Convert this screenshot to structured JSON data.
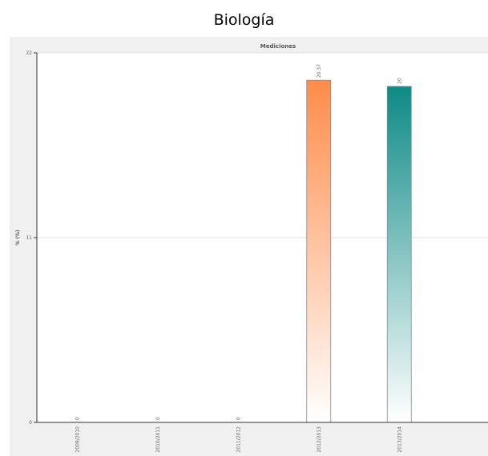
{
  "page": {
    "title": "Biología"
  },
  "chart_data": {
    "type": "bar",
    "title": "Mediciones",
    "xlabel": "",
    "ylabel": "% (%)",
    "categories": [
      "2009/2010",
      "2010/2011",
      "2011/2012",
      "2012/2013",
      "2013/2014"
    ],
    "values": [
      0,
      0,
      0,
      20.37,
      20
    ],
    "value_labels": [
      "0",
      "0",
      "0",
      "20.37",
      "20"
    ],
    "ylim": [
      0,
      22
    ],
    "yticks": [
      0,
      11,
      22
    ],
    "grid": true,
    "legend": "none",
    "bar_colors": [
      "#ff8c4a",
      "#ff8c4a",
      "#ff8c4a",
      "#ff8c4a",
      "#0e8a86"
    ]
  }
}
